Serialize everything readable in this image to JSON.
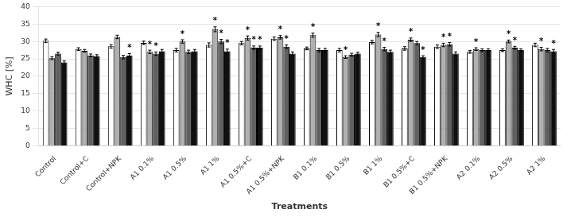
{
  "chart_data": {
    "type": "bar",
    "xlabel": "Treatments",
    "ylabel": "WHC [%]",
    "categories": [
      "Control",
      "Control+C",
      "Control+NPK",
      "A1 0.1%",
      "A1 0.5%",
      "A1 1%",
      "A1 0.5%+C",
      "A1 0.5%+NPK",
      "B1 0.1%",
      "B1 0.5%",
      "B1 1%",
      "B1 0.5%+C",
      "B1 0.5%+NPK",
      "A2 0.1%",
      "A2 0.5%",
      "A2 1%"
    ],
    "series": [
      {
        "color": "#ffffff",
        "values": [
          30.2,
          27.8,
          28.6,
          29.6,
          27.5,
          29.0,
          29.5,
          30.8,
          28.0,
          27.5,
          29.8,
          28.0,
          28.5,
          27.0,
          27.5,
          29.0
        ],
        "errors": [
          0.5,
          0.4,
          0.5,
          0.5,
          0.5,
          0.6,
          0.5,
          0.5,
          0.4,
          0.5,
          0.5,
          0.5,
          0.5,
          0.4,
          0.4,
          0.5
        ],
        "annotations": [
          null,
          null,
          null,
          null,
          null,
          null,
          null,
          null,
          null,
          null,
          null,
          null,
          null,
          null,
          null,
          null
        ]
      },
      {
        "color": "#b0b0b0",
        "values": [
          25.2,
          27.3,
          31.3,
          27.0,
          30.0,
          33.5,
          31.0,
          31.2,
          31.8,
          25.5,
          32.0,
          30.5,
          29.0,
          27.8,
          30.0,
          27.8
        ],
        "errors": [
          0.4,
          0.4,
          0.5,
          0.5,
          0.5,
          0.7,
          0.6,
          0.5,
          0.6,
          0.4,
          0.6,
          0.5,
          0.5,
          0.4,
          0.4,
          0.5
        ],
        "annotations": [
          null,
          null,
          null,
          "*",
          "*",
          "*",
          "*",
          "*",
          "*",
          "*",
          "*",
          "*",
          "*",
          "*",
          "*",
          "*"
        ]
      },
      {
        "color": "#606060",
        "values": [
          26.5,
          26.0,
          25.5,
          26.5,
          27.0,
          30.0,
          28.2,
          28.5,
          27.5,
          26.2,
          27.8,
          29.5,
          29.2,
          27.5,
          28.2,
          27.5
        ],
        "errors": [
          0.4,
          0.4,
          0.5,
          0.5,
          0.5,
          0.6,
          0.5,
          0.5,
          0.5,
          0.4,
          0.5,
          0.5,
          0.5,
          0.4,
          0.4,
          0.5
        ],
        "annotations": [
          null,
          null,
          null,
          "*",
          null,
          "*",
          "*",
          "*",
          null,
          null,
          "*",
          null,
          "*",
          null,
          "*",
          null
        ]
      },
      {
        "color": "#101010",
        "values": [
          24.0,
          25.8,
          26.0,
          27.2,
          27.2,
          27.2,
          28.2,
          26.5,
          27.5,
          26.5,
          27.0,
          25.5,
          26.5,
          27.5,
          27.5,
          27.2
        ],
        "errors": [
          0.4,
          0.4,
          0.5,
          0.5,
          0.5,
          0.6,
          0.5,
          0.5,
          0.5,
          0.4,
          0.5,
          0.4,
          0.5,
          0.4,
          0.4,
          0.5
        ],
        "annotations": [
          null,
          null,
          "*",
          null,
          null,
          "*",
          "*",
          null,
          null,
          null,
          null,
          "*",
          null,
          null,
          null,
          "*"
        ]
      }
    ],
    "ylim": [
      0,
      40
    ],
    "yticks": [
      0,
      5,
      10,
      15,
      20,
      25,
      30,
      35,
      40
    ],
    "grid": "y"
  }
}
